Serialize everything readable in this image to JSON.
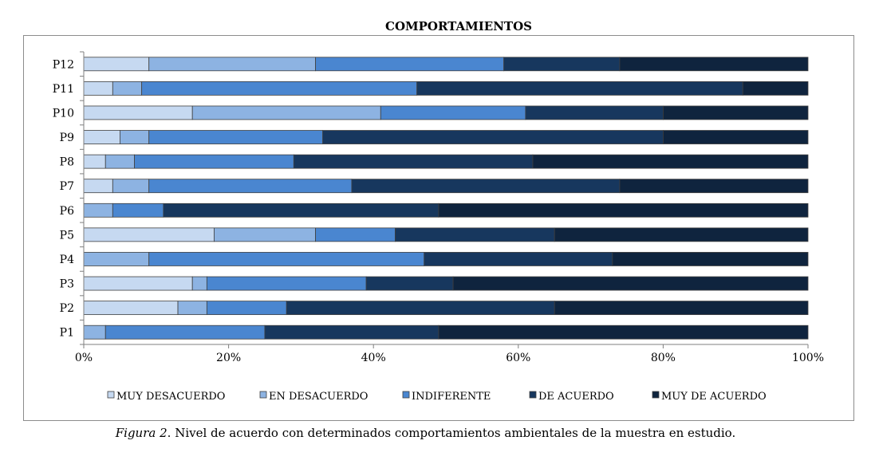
{
  "chart_data": {
    "type": "bar",
    "orientation": "horizontal",
    "stacked": "percent",
    "title": "COMPORTAMIENTOS",
    "categories": [
      "P12",
      "P11",
      "P10",
      "P9",
      "P8",
      "P7",
      "P6",
      "P5",
      "P4",
      "P3",
      "P2",
      "P1"
    ],
    "series": [
      {
        "name": "MUY DESACUERDO",
        "color": "#c6d9f1",
        "values": [
          9,
          4,
          15,
          5,
          3,
          4,
          0,
          18,
          0,
          15,
          13,
          0
        ]
      },
      {
        "name": "EN DESACUERDO",
        "color": "#8db3e2",
        "values": [
          23,
          4,
          26,
          4,
          4,
          5,
          4,
          14,
          9,
          2,
          4,
          3
        ]
      },
      {
        "name": "INDIFERENTE",
        "color": "#4a86d0",
        "values": [
          26,
          38,
          20,
          24,
          22,
          28,
          7,
          11,
          38,
          22,
          11,
          22
        ]
      },
      {
        "name": "DE ACUERDO",
        "color": "#17375e",
        "values": [
          16,
          45,
          19,
          47,
          33,
          37,
          38,
          22,
          26,
          12,
          37,
          24
        ]
      },
      {
        "name": "MUY DE ACUERDO",
        "color": "#0f243e",
        "values": [
          26,
          9,
          20,
          20,
          38,
          26,
          51,
          35,
          27,
          49,
          35,
          51
        ]
      }
    ],
    "xlim": [
      0,
      100
    ],
    "xticks": [
      "0%",
      "20%",
      "40%",
      "60%",
      "80%",
      "100%"
    ],
    "grid": false,
    "legend": "bottom"
  },
  "caption": {
    "label": "Figura 2",
    "text": ". Nivel de acuerdo con determinados comportamientos ambientales de la muestra en estudio."
  }
}
